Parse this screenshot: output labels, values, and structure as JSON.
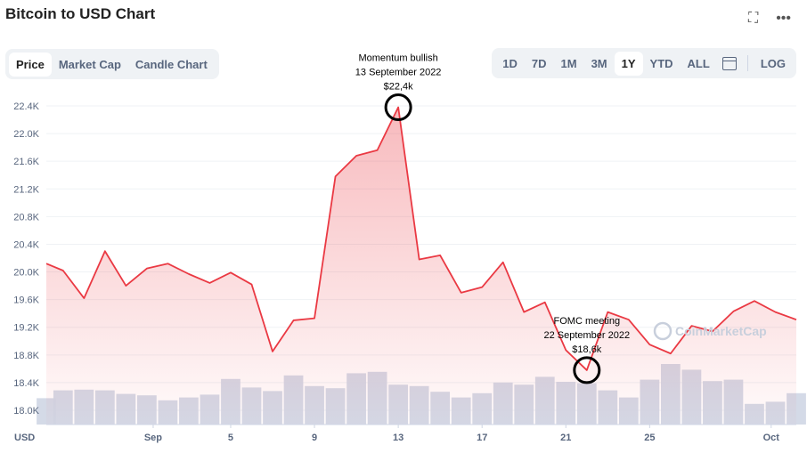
{
  "header": {
    "title": "Bitcoin to USD Chart",
    "expand_icon": "expand-icon",
    "more_icon": "more-icon"
  },
  "tabs": [
    {
      "label": "Price",
      "active": true
    },
    {
      "label": "Market Cap",
      "active": false
    },
    {
      "label": "Candle Chart",
      "active": false
    }
  ],
  "ranges": [
    {
      "label": "1D"
    },
    {
      "label": "7D"
    },
    {
      "label": "1M"
    },
    {
      "label": "3M"
    },
    {
      "label": "1Y",
      "active": true
    },
    {
      "label": "YTD"
    },
    {
      "label": "ALL"
    }
  ],
  "log_label": "LOG",
  "calendar_icon": "calendar-icon",
  "watermark": "CoinMarketCap",
  "chart_data": {
    "type": "line",
    "title": "Bitcoin to USD Chart",
    "currency_label": "USD",
    "line_color": "#ea3943",
    "volume_color": "#cfd6e4",
    "ylim": [
      17900,
      22600
    ],
    "y_ticks": [
      "18.0K",
      "18.4K",
      "18.8K",
      "19.2K",
      "19.6K",
      "20.0K",
      "20.4K",
      "20.8K",
      "21.2K",
      "21.6K",
      "22.0K",
      "22.4K"
    ],
    "y_tick_values": [
      18000,
      18400,
      18800,
      19200,
      19600,
      20000,
      20400,
      20800,
      21200,
      21600,
      22000,
      22400
    ],
    "x_ticks": [
      "Sep",
      "5",
      "9",
      "13",
      "17",
      "21",
      "25",
      "Oct"
    ],
    "x_tick_values": [
      1.3,
      5,
      9,
      13,
      17,
      21,
      25,
      30.8
    ],
    "x": [
      -3.8,
      -3,
      -2,
      -1,
      0,
      1,
      2,
      3,
      4,
      5,
      6,
      7,
      8,
      9,
      10,
      11,
      12,
      13,
      14,
      15,
      16,
      17,
      18,
      19,
      20,
      21,
      22,
      23,
      24,
      25,
      26,
      27,
      28,
      29,
      30,
      31,
      32
    ],
    "values": [
      20120,
      20020,
      19620,
      20300,
      19800,
      20050,
      20120,
      19970,
      19840,
      19990,
      19820,
      18850,
      19300,
      19330,
      21380,
      21680,
      21760,
      22380,
      20180,
      20240,
      19700,
      19780,
      20140,
      19420,
      19560,
      18870,
      18580,
      19420,
      19310,
      18950,
      18820,
      19220,
      19140,
      19430,
      19580,
      19420,
      19310
    ],
    "volume": [
      0.37,
      0.48,
      0.49,
      0.48,
      0.43,
      0.41,
      0.34,
      0.38,
      0.42,
      0.64,
      0.52,
      0.47,
      0.69,
      0.54,
      0.51,
      0.72,
      0.74,
      0.56,
      0.54,
      0.46,
      0.38,
      0.44,
      0.59,
      0.56,
      0.67,
      0.6,
      0.58,
      0.48,
      0.38,
      0.63,
      0.85,
      0.77,
      0.61,
      0.63,
      0.29,
      0.32,
      0.44
    ],
    "annotations": [
      {
        "lines": [
          "Momentum bullish",
          "13 September 2022",
          "$22,4k"
        ],
        "x": 13,
        "y": 22380,
        "position": "above"
      },
      {
        "lines": [
          "FOMC meeting",
          "22 September 2022",
          "$18,6k"
        ],
        "x": 22,
        "y": 18580,
        "position": "above"
      }
    ]
  }
}
